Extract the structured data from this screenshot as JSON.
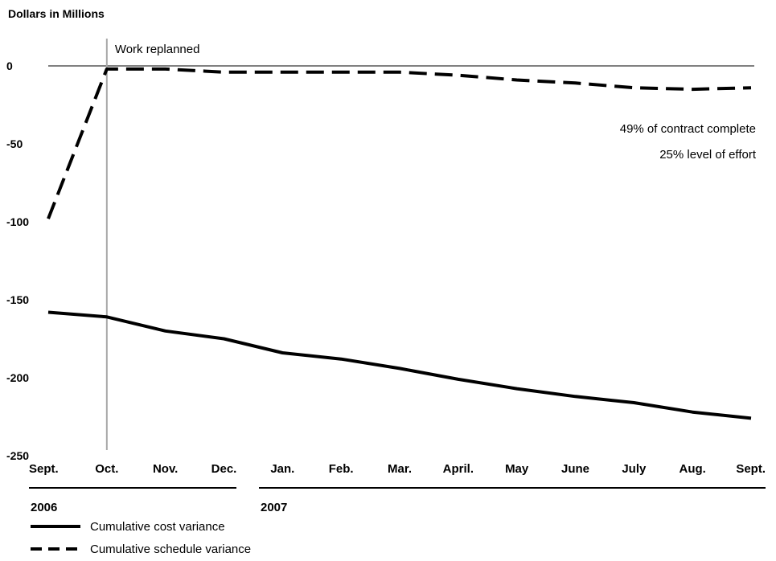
{
  "chart_data": {
    "type": "line",
    "ylabel": "Dollars in Millions",
    "ylim": [
      -250,
      0
    ],
    "yticks": [
      "0",
      "-50",
      "-100",
      "-150",
      "-200",
      "-250"
    ],
    "ytick_values": [
      0,
      -50,
      -100,
      -150,
      -200,
      -250
    ],
    "categories": [
      "Sept.",
      "Oct.",
      "Nov.",
      "Dec.",
      "Jan.",
      "Feb.",
      "Mar.",
      "April.",
      "May",
      "June",
      "July",
      "Aug.",
      "Sept."
    ],
    "year_groups": [
      {
        "label": "2006",
        "from": "Sept.",
        "to": "Dec."
      },
      {
        "label": "2007",
        "from": "Jan.",
        "to": "Sept."
      }
    ],
    "series": [
      {
        "name": "Cumulative cost variance",
        "style": "solid",
        "values": [
          -158,
          -161,
          -170,
          -175,
          -184,
          -188,
          -194,
          -201,
          -207,
          -212,
          -216,
          -222,
          -226
        ]
      },
      {
        "name": "Cumulative schedule variance",
        "style": "dashed",
        "values": [
          -98,
          -2,
          -2,
          -4,
          -4,
          -4,
          -4,
          -6,
          -9,
          -11,
          -14,
          -15,
          -14
        ]
      }
    ],
    "marker": {
      "category_index": 1,
      "label": "Work replanned"
    },
    "annotations": [
      "49% of contract complete",
      "25% level of effort"
    ],
    "grid": false,
    "legend_position": "bottom-left"
  },
  "colors": {
    "line": "#000000",
    "marker": "#a8a8a8",
    "axis": "#000000"
  }
}
